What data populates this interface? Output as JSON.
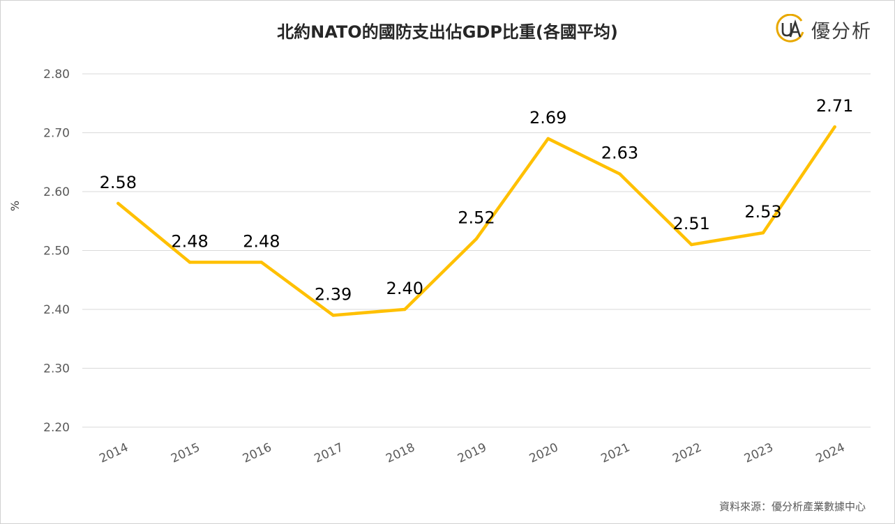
{
  "title": "北約NATO的國防支出佔GDP比重(各國平均)",
  "logo_text": "優分析",
  "source": "資料來源：優分析產業數據中心",
  "line_color": "#FFC000",
  "grid_color": "#D9D9D9",
  "chart_data": {
    "type": "line",
    "title": "北約NATO的國防支出佔GDP比重(各國平均)",
    "xlabel": "",
    "ylabel": "%",
    "categories": [
      "2014",
      "2015",
      "2016",
      "2017",
      "2018",
      "2019",
      "2020",
      "2021",
      "2022",
      "2023",
      "2024"
    ],
    "values": [
      2.58,
      2.48,
      2.48,
      2.39,
      2.4,
      2.52,
      2.69,
      2.63,
      2.51,
      2.53,
      2.71
    ],
    "data_labels": [
      "2.58",
      "2.48",
      "2.48",
      "2.39",
      "2.40",
      "2.52",
      "2.69",
      "2.63",
      "2.51",
      "2.53",
      "2.71"
    ],
    "ylim": [
      2.2,
      2.8
    ],
    "yticks": [
      "2.80",
      "2.70",
      "2.60",
      "2.50",
      "2.40",
      "2.30",
      "2.20"
    ],
    "grid": true,
    "legend": "none"
  }
}
